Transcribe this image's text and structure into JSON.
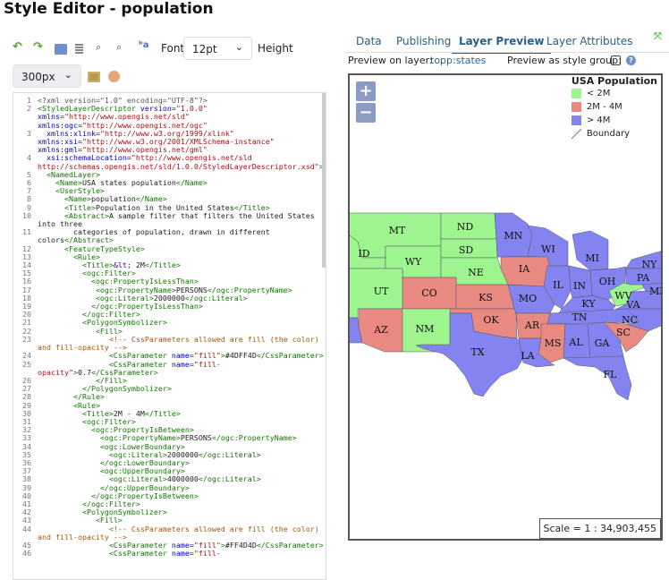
{
  "page_title": "Style Editor - population",
  "toolbar": {
    "font_label": "Font",
    "font_size": "12pt",
    "height_label": "Height",
    "height_value": "300px"
  },
  "tabs": [
    {
      "label": "Data"
    },
    {
      "label": "Publishing"
    },
    {
      "label": "Layer Preview",
      "active": true
    },
    {
      "label": "Layer Attributes"
    }
  ],
  "preview": {
    "layer_label": "Preview on layer:",
    "layer_value": "topp:states",
    "group_label": "Preview as style group:",
    "group_checked": false
  },
  "map": {
    "zoom_in": "+",
    "zoom_out": "−",
    "legend": {
      "title": "USA Population",
      "items": [
        {
          "label": "< 2M",
          "color": "#9ef58f"
        },
        {
          "label": "2M - 4M",
          "color": "#e98a82"
        },
        {
          "label": "> 4M",
          "color": "#8484f0"
        },
        {
          "label": "Boundary"
        }
      ]
    },
    "scale": "Scale = 1 : 34,903,455",
    "states": [
      "MT",
      "ND",
      "ID",
      "WY",
      "SD",
      "NE",
      "MN",
      "WI",
      "MI",
      "IA",
      "IL",
      "IN",
      "OH",
      "NY",
      "PA",
      "UT",
      "CO",
      "KS",
      "MO",
      "WV",
      "MD",
      "KY",
      "VA",
      "TN",
      "NC",
      "OK",
      "AR",
      "AZ",
      "NM",
      "SC",
      "MS",
      "AL",
      "GA",
      "TX",
      "LA",
      "FL"
    ]
  },
  "code": [
    {
      "n": "1",
      "seg": [
        [
          "m",
          "<?xml version=\"1.0\" encoding=\"UTF-8\"?>"
        ]
      ]
    },
    {
      "n": "2",
      "seg": [
        [
          "t",
          "<StyledLayerDescriptor"
        ],
        [
          "p",
          " "
        ],
        [
          "a",
          "version"
        ],
        [
          "p",
          "="
        ],
        [
          "s",
          "\"1.0.0\""
        ],
        [
          "p",
          " "
        ],
        [
          "a",
          "xmlns"
        ],
        [
          "p",
          "="
        ],
        [
          "s",
          "\"http://www.opengis.net/sld\""
        ],
        [
          "p",
          " "
        ],
        [
          "a",
          "xmlns:ogc"
        ],
        [
          "p",
          "="
        ],
        [
          "s",
          "\"http://www.opengis.net/ogc\""
        ]
      ]
    },
    {
      "n": "3",
      "seg": [
        [
          "p",
          "  "
        ],
        [
          "a",
          "xmlns:xlink"
        ],
        [
          "p",
          "="
        ],
        [
          "s",
          "\"http://www.w3.org/1999/xlink\""
        ],
        [
          "p",
          " "
        ],
        [
          "a",
          "xmlns:xsi"
        ],
        [
          "p",
          "="
        ],
        [
          "s",
          "\"http://www.w3.org/2001/XMLSchema-instance\""
        ],
        [
          "p",
          " "
        ],
        [
          "a",
          "xmlns:gml"
        ],
        [
          "p",
          "="
        ],
        [
          "s",
          "\"http://www.opengis.net/gml\""
        ]
      ]
    },
    {
      "n": "4",
      "seg": [
        [
          "p",
          "  "
        ],
        [
          "a",
          "xsi:schemaLocation"
        ],
        [
          "p",
          "="
        ],
        [
          "s",
          "\"http://www.opengis.net/sld http://schemas.opengis.net/sld/1.0.0/StyledLayerDescriptor.xsd\""
        ],
        [
          "t",
          ">"
        ]
      ]
    },
    {
      "n": "5",
      "seg": [
        [
          "p",
          "  "
        ],
        [
          "t",
          "<NamedLayer>"
        ]
      ]
    },
    {
      "n": "6",
      "seg": [
        [
          "p",
          "    "
        ],
        [
          "t",
          "<Name>"
        ],
        [
          "p",
          "USA states population"
        ],
        [
          "t",
          "</Name>"
        ]
      ]
    },
    {
      "n": "7",
      "seg": [
        [
          "p",
          "    "
        ],
        [
          "t",
          "<UserStyle>"
        ]
      ]
    },
    {
      "n": "8",
      "seg": [
        [
          "p",
          "      "
        ],
        [
          "t",
          "<Name>"
        ],
        [
          "p",
          "population"
        ],
        [
          "t",
          "</Name>"
        ]
      ]
    },
    {
      "n": "9",
      "seg": [
        [
          "p",
          "      "
        ],
        [
          "t",
          "<Title>"
        ],
        [
          "p",
          "Population in the United States"
        ],
        [
          "t",
          "</Title>"
        ]
      ]
    },
    {
      "n": "10",
      "seg": [
        [
          "p",
          "      "
        ],
        [
          "t",
          "<Abstract>"
        ],
        [
          "p",
          "A sample filter that filters the United States into three"
        ]
      ]
    },
    {
      "n": "11",
      "seg": [
        [
          "p",
          "        categories of population, drawn in different colors"
        ],
        [
          "t",
          "</Abstract>"
        ]
      ]
    },
    {
      "n": "12",
      "seg": [
        [
          "p",
          "      "
        ],
        [
          "t",
          "<FeatureTypeStyle>"
        ]
      ]
    },
    {
      "n": "13",
      "seg": [
        [
          "p",
          "        "
        ],
        [
          "t",
          "<Rule>"
        ]
      ]
    },
    {
      "n": "14",
      "seg": [
        [
          "p",
          "          "
        ],
        [
          "t",
          "<Title>"
        ],
        [
          "e",
          "&lt;"
        ],
        [
          "p",
          " 2M"
        ],
        [
          "t",
          "</Title>"
        ]
      ]
    },
    {
      "n": "15",
      "seg": [
        [
          "p",
          "          "
        ],
        [
          "t",
          "<ogc:Filter>"
        ]
      ]
    },
    {
      "n": "16",
      "seg": [
        [
          "p",
          "            "
        ],
        [
          "t",
          "<ogc:PropertyIsLessThan>"
        ]
      ]
    },
    {
      "n": "17",
      "seg": [
        [
          "p",
          "             "
        ],
        [
          "t",
          "<ogc:PropertyName>"
        ],
        [
          "p",
          "PERSONS"
        ],
        [
          "t",
          "</ogc:PropertyName>"
        ]
      ]
    },
    {
      "n": "18",
      "seg": [
        [
          "p",
          "             "
        ],
        [
          "t",
          "<ogc:Literal>"
        ],
        [
          "p",
          "2000000"
        ],
        [
          "t",
          "</ogc:Literal>"
        ]
      ]
    },
    {
      "n": "19",
      "seg": [
        [
          "p",
          "            "
        ],
        [
          "t",
          "</ogc:PropertyIsLessThan>"
        ]
      ]
    },
    {
      "n": "20",
      "seg": [
        [
          "p",
          "          "
        ],
        [
          "t",
          "</ogc:Filter>"
        ]
      ]
    },
    {
      "n": "21",
      "seg": [
        [
          "p",
          "          "
        ],
        [
          "t",
          "<PolygonSymbolizer>"
        ]
      ]
    },
    {
      "n": "22",
      "seg": [
        [
          "p",
          "             "
        ],
        [
          "t",
          "<Fill>"
        ]
      ]
    },
    {
      "n": "23",
      "seg": [
        [
          "p",
          "                "
        ],
        [
          "c",
          "<!-- CssParameters allowed are fill (the color) and fill-opacity -->"
        ]
      ]
    },
    {
      "n": "24",
      "seg": [
        [
          "p",
          "                "
        ],
        [
          "t",
          "<CssParameter"
        ],
        [
          "p",
          " "
        ],
        [
          "a",
          "name"
        ],
        [
          "p",
          "="
        ],
        [
          "s",
          "\"fill\""
        ],
        [
          "t",
          ">"
        ],
        [
          "p",
          "#4DFF4D"
        ],
        [
          "t",
          "</CssParameter>"
        ]
      ]
    },
    {
      "n": "25",
      "seg": [
        [
          "p",
          "                "
        ],
        [
          "t",
          "<CssParameter"
        ],
        [
          "p",
          " "
        ],
        [
          "a",
          "name"
        ],
        [
          "p",
          "="
        ],
        [
          "s",
          "\"fill-opacity\""
        ],
        [
          "t",
          ">"
        ],
        [
          "p",
          "0.7"
        ],
        [
          "t",
          "</CssParameter>"
        ]
      ]
    },
    {
      "n": "26",
      "seg": [
        [
          "p",
          "             "
        ],
        [
          "t",
          "</Fill>"
        ]
      ]
    },
    {
      "n": "27",
      "seg": [
        [
          "p",
          "          "
        ],
        [
          "t",
          "</PolygonSymbolizer>"
        ]
      ]
    },
    {
      "n": "28",
      "seg": [
        [
          "p",
          "        "
        ],
        [
          "t",
          "</Rule>"
        ]
      ]
    },
    {
      "n": "29",
      "seg": [
        [
          "p",
          "        "
        ],
        [
          "t",
          "<Rule>"
        ]
      ]
    },
    {
      "n": "30",
      "seg": [
        [
          "p",
          "          "
        ],
        [
          "t",
          "<Title>"
        ],
        [
          "p",
          "2M - 4M"
        ],
        [
          "t",
          "</Title>"
        ]
      ]
    },
    {
      "n": "31",
      "seg": [
        [
          "p",
          "          "
        ],
        [
          "t",
          "<ogc:Filter>"
        ]
      ]
    },
    {
      "n": "32",
      "seg": [
        [
          "p",
          "            "
        ],
        [
          "t",
          "<ogc:PropertyIsBetween>"
        ]
      ]
    },
    {
      "n": "33",
      "seg": [
        [
          "p",
          "              "
        ],
        [
          "t",
          "<ogc:PropertyName>"
        ],
        [
          "p",
          "PERSONS"
        ],
        [
          "t",
          "</ogc:PropertyName>"
        ]
      ]
    },
    {
      "n": "34",
      "seg": [
        [
          "p",
          "              "
        ],
        [
          "t",
          "<ogc:LowerBoundary>"
        ]
      ]
    },
    {
      "n": "35",
      "seg": [
        [
          "p",
          "                "
        ],
        [
          "t",
          "<ogc:Literal>"
        ],
        [
          "p",
          "2000000"
        ],
        [
          "t",
          "</ogc:Literal>"
        ]
      ]
    },
    {
      "n": "36",
      "seg": [
        [
          "p",
          "              "
        ],
        [
          "t",
          "</ogc:LowerBoundary>"
        ]
      ]
    },
    {
      "n": "37",
      "seg": [
        [
          "p",
          "              "
        ],
        [
          "t",
          "<ogc:UpperBoundary>"
        ]
      ]
    },
    {
      "n": "38",
      "seg": [
        [
          "p",
          "                "
        ],
        [
          "t",
          "<ogc:Literal>"
        ],
        [
          "p",
          "4000000"
        ],
        [
          "t",
          "</ogc:Literal>"
        ]
      ]
    },
    {
      "n": "39",
      "seg": [
        [
          "p",
          "              "
        ],
        [
          "t",
          "</ogc:UpperBoundary>"
        ]
      ]
    },
    {
      "n": "40",
      "seg": [
        [
          "p",
          "            "
        ],
        [
          "t",
          "</ogc:PropertyIsBetween>"
        ]
      ]
    },
    {
      "n": "41",
      "seg": [
        [
          "p",
          "          "
        ],
        [
          "t",
          "</ogc:Filter>"
        ]
      ]
    },
    {
      "n": "42",
      "seg": [
        [
          "p",
          "          "
        ],
        [
          "t",
          "<PolygonSymbolizer>"
        ]
      ]
    },
    {
      "n": "43",
      "seg": [
        [
          "p",
          "             "
        ],
        [
          "t",
          "<Fill>"
        ]
      ]
    },
    {
      "n": "44",
      "seg": [
        [
          "p",
          "                "
        ],
        [
          "c",
          "<!-- CssParameters allowed are fill (the color) and fill-opacity -->"
        ]
      ]
    },
    {
      "n": "45",
      "seg": [
        [
          "p",
          "                "
        ],
        [
          "t",
          "<CssParameter"
        ],
        [
          "p",
          " "
        ],
        [
          "a",
          "name"
        ],
        [
          "p",
          "="
        ],
        [
          "s",
          "\"fill\""
        ],
        [
          "t",
          ">"
        ],
        [
          "p",
          "#FF4D4D"
        ],
        [
          "t",
          "</CssParameter>"
        ]
      ]
    },
    {
      "n": "46",
      "seg": [
        [
          "p",
          "                "
        ],
        [
          "t",
          "<CssParameter"
        ],
        [
          "p",
          " "
        ],
        [
          "a",
          "name"
        ],
        [
          "p",
          "="
        ],
        [
          "s",
          "\"fill-"
        ]
      ]
    }
  ]
}
